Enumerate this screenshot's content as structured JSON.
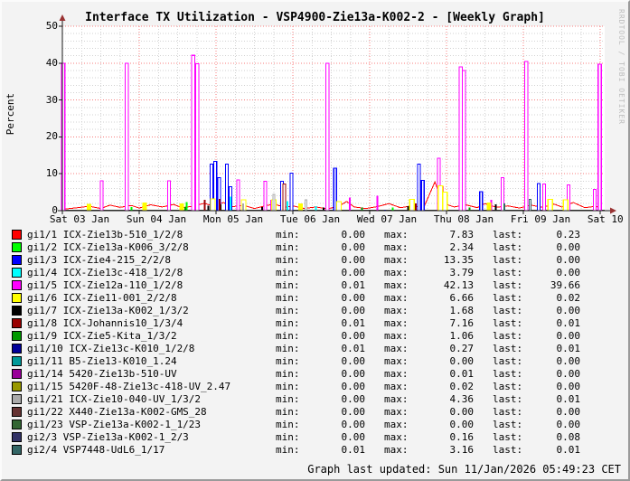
{
  "title": "Interface TX Utilization - VSP4900-Zie13a-K002-2 - [Weekly Graph]",
  "watermark": "RRDTOOL / TOBI OETIKER",
  "footer": "Graph last updated: Sun 11/Jan/2026 05:49:23 CET",
  "colors": {
    "background": "#f3f3f3",
    "canvas": "#ffffff",
    "axis": "#1a1a1a",
    "arrow": "#993333",
    "grid_major": "#f87c7c",
    "grid_minor": "#d2d2d2",
    "watermark": "#bdbdbd"
  },
  "chart_data": {
    "type": "line",
    "title": "Interface TX Utilization - VSP4900-Zie13a-K002-2 - [Weekly Graph]",
    "xlabel": "",
    "ylabel": "Percent",
    "ylim": [
      0,
      50
    ],
    "y_major_ticks": [
      0,
      10,
      20,
      30,
      40,
      50
    ],
    "y_minor_step": 2,
    "x_tick_labels": [
      "Sat 03 Jan",
      "Sun 04 Jan",
      "Mon 05 Jan",
      "Tue 06 Jan",
      "Wed 07 Jan",
      "Thu 08 Jan",
      "Fri 09 Jan",
      "Sat 10 Jan"
    ],
    "x_days_span": 7.06,
    "x_minor_per_day": 4,
    "grid": true,
    "legend_position": "bottom",
    "baseline": {
      "color": "#3a3a33",
      "value": 0.15
    },
    "series": [
      {
        "name": "gi1/1 ICX-Zie13b-510_1/2/8",
        "color": "#FF0000",
        "line": [
          [
            0,
            0.4
          ],
          [
            0.2,
            0.8
          ],
          [
            0.35,
            1.2
          ],
          [
            0.5,
            0.6
          ],
          [
            0.62,
            1.5
          ],
          [
            0.75,
            0.9
          ],
          [
            0.9,
            1.4
          ],
          [
            1.0,
            0.7
          ],
          [
            1.15,
            1.6
          ],
          [
            1.3,
            1.0
          ],
          [
            1.45,
            1.7
          ],
          [
            1.55,
            0.8
          ],
          [
            1.7,
            1.2
          ],
          [
            1.85,
            2.0
          ],
          [
            1.95,
            1.3
          ],
          [
            2.1,
            2.2
          ],
          [
            2.2,
            1.0
          ],
          [
            2.35,
            1.5
          ],
          [
            2.5,
            0.6
          ],
          [
            2.6,
            1.1
          ],
          [
            2.75,
            1.8
          ],
          [
            2.9,
            0.9
          ],
          [
            3.0,
            1.3
          ],
          [
            3.15,
            0.6
          ],
          [
            3.3,
            1.0
          ],
          [
            3.45,
            0.5
          ],
          [
            3.6,
            1.2
          ],
          [
            3.7,
            2.5
          ],
          [
            3.8,
            1.0
          ],
          [
            3.95,
            0.6
          ],
          [
            4.1,
            1.1
          ],
          [
            4.25,
            1.9
          ],
          [
            4.4,
            0.8
          ],
          [
            4.55,
            1.3
          ],
          [
            4.7,
            0.7
          ],
          [
            4.85,
            7.8
          ],
          [
            4.95,
            2.0
          ],
          [
            5.1,
            1.0
          ],
          [
            5.25,
            1.6
          ],
          [
            5.4,
            0.8
          ],
          [
            5.5,
            1.9
          ],
          [
            5.65,
            0.9
          ],
          [
            5.8,
            1.3
          ],
          [
            5.95,
            0.7
          ],
          [
            6.1,
            1.5
          ],
          [
            6.25,
            0.9
          ],
          [
            6.4,
            1.8
          ],
          [
            6.5,
            1.0
          ],
          [
            6.65,
            2.2
          ],
          [
            6.8,
            0.8
          ],
          [
            6.95,
            1.2
          ],
          [
            7.0,
            0.4
          ]
        ]
      },
      {
        "name": "gi1/2 ICX-Zie13a-K006_3/2/8",
        "color": "#00FF00",
        "spikes": [
          [
            0.9,
            1.0
          ],
          [
            1.62,
            2.3
          ],
          [
            3.55,
            1.5
          ],
          [
            4.3,
            0.8
          ]
        ]
      },
      {
        "name": "gi1/3 ICX-Zie4-215_2/2/8",
        "color": "#0000FF",
        "spikes": [
          [
            1.94,
            12.6
          ],
          [
            1.99,
            13.3
          ],
          [
            2.04,
            9.0
          ],
          [
            2.14,
            12.6
          ],
          [
            2.19,
            6.5
          ],
          [
            2.86,
            8.0
          ],
          [
            2.98,
            10.2
          ],
          [
            3.55,
            11.5
          ],
          [
            4.64,
            12.6
          ],
          [
            4.69,
            8.2
          ],
          [
            5.45,
            5.2
          ],
          [
            6.2,
            7.3
          ]
        ]
      },
      {
        "name": "gi1/4 ICX-Zie13c-418_1/2/8",
        "color": "#00FFFF",
        "spikes": [
          [
            1.55,
            1.2
          ],
          [
            2.19,
            3.8
          ],
          [
            2.93,
            2.6
          ],
          [
            3.3,
            1.2
          ]
        ]
      },
      {
        "name": "gi1/5 ICX-Zie12a-110_1/2/8",
        "color": "#FF00FF",
        "spikes": [
          [
            0.005,
            40.0
          ],
          [
            0.51,
            8.1
          ],
          [
            0.84,
            40.0
          ],
          [
            1.39,
            8.1
          ],
          [
            1.7,
            42.1
          ],
          [
            1.755,
            39.8
          ],
          [
            2.29,
            8.3
          ],
          [
            2.64,
            8.0
          ],
          [
            2.72,
            3.0
          ],
          [
            3.45,
            40.0
          ],
          [
            3.74,
            3.5
          ],
          [
            4.1,
            4.0
          ],
          [
            4.9,
            14.2
          ],
          [
            4.94,
            6.5
          ],
          [
            5.185,
            39.0
          ],
          [
            5.225,
            38.0
          ],
          [
            5.58,
            3.0
          ],
          [
            5.73,
            9.0
          ],
          [
            6.04,
            40.5
          ],
          [
            6.27,
            7.2
          ],
          [
            6.59,
            7.0
          ],
          [
            6.93,
            5.8
          ],
          [
            6.995,
            39.7
          ]
        ]
      },
      {
        "name": "gi1/6 ICX-Zie11-001_2/2/8",
        "color": "#FFFF00",
        "spike_width": 5,
        "hollow_min": 2.5,
        "spikes": [
          [
            0.35,
            1.8
          ],
          [
            1.07,
            2.2
          ],
          [
            1.55,
            2.0
          ],
          [
            1.96,
            3.2
          ],
          [
            2.36,
            3.0
          ],
          [
            2.75,
            3.0
          ],
          [
            3.1,
            2.0
          ],
          [
            3.6,
            2.5
          ],
          [
            4.55,
            3.1
          ],
          [
            4.92,
            6.7
          ],
          [
            4.98,
            5.0
          ],
          [
            5.55,
            2.2
          ],
          [
            6.35,
            3.1
          ],
          [
            6.55,
            3.0
          ]
        ]
      },
      {
        "name": "gi1/7 ICX-Zie13a-K002_1/3/2",
        "color": "#000000",
        "spikes": [
          [
            1.9,
            1.3
          ],
          [
            2.06,
            1.7
          ],
          [
            2.6,
            1.0
          ],
          [
            3.4,
            0.8
          ],
          [
            4.5,
            1.2
          ],
          [
            5.64,
            1.7
          ]
        ]
      },
      {
        "name": "gi1/8 ICX-Johannis10_1/3/4",
        "color": "#990000",
        "spikes": [
          [
            1.85,
            3.0
          ],
          [
            2.05,
            3.2
          ],
          [
            2.89,
            7.2
          ],
          [
            4.6,
            2.0
          ]
        ]
      },
      {
        "name": "gi1/9 ICX-Zie5-Kita_1/3/2",
        "color": "#009900",
        "spikes": [
          [
            1.6,
            1.0
          ],
          [
            3.9,
            0.8
          ],
          [
            5.3,
            0.9
          ]
        ]
      },
      {
        "name": "gi1/10 ICX-Zie13c-K010_1/2/8",
        "color": "#000099",
        "spikes": [
          [
            4.2,
            0.27
          ]
        ]
      },
      {
        "name": "gi1/11 B5-Zie13-K010_1.24",
        "color": "#009999",
        "spikes": []
      },
      {
        "name": "gi1/14 5420-Zie13b-510-UV",
        "color": "#990099",
        "spikes": []
      },
      {
        "name": "gi1/15 5420F-48-Zie13c-418-UV_2.47",
        "color": "#999900",
        "spikes": []
      },
      {
        "name": "gi1/21 ICX-Zie10-040-UV_1/3/2",
        "color": "#AAAAAA",
        "hollow_min": 2.5,
        "spikes": [
          [
            2.35,
            2.0
          ],
          [
            2.75,
            4.4
          ],
          [
            3.17,
            3.0
          ]
        ]
      },
      {
        "name": "gi1/22 X440-Zie13a-K002-GMS_28",
        "color": "#663333",
        "spikes": []
      },
      {
        "name": "gi1/23 VSP-Zie13a-K002-1_1/23",
        "color": "#336633",
        "spikes": []
      },
      {
        "name": "gi2/3 VSP-Zie13a-K002-1_2/3",
        "color": "#333366",
        "spikes": [
          [
            6.5,
            0.16
          ]
        ]
      },
      {
        "name": "gi2/4 VSP7448-UdL6_1/17",
        "color": "#336666",
        "hollow_min": 2.5,
        "spikes": [
          [
            5.75,
            2.0
          ],
          [
            6.09,
            3.1
          ]
        ]
      }
    ]
  },
  "legend": {
    "col_labels": {
      "min": "min:",
      "max": "max:",
      "last": "last:"
    },
    "rows": [
      {
        "color": "#FF0000",
        "label": "gi1/1 ICX-Zie13b-510_1/2/8",
        "min": "0.00",
        "max": "7.83",
        "last": "0.23"
      },
      {
        "color": "#00FF00",
        "label": "gi1/2 ICX-Zie13a-K006_3/2/8",
        "min": "0.00",
        "max": "2.34",
        "last": "0.00"
      },
      {
        "color": "#0000FF",
        "label": "gi1/3 ICX-Zie4-215_2/2/8",
        "min": "0.00",
        "max": "13.35",
        "last": "0.00"
      },
      {
        "color": "#00FFFF",
        "label": "gi1/4 ICX-Zie13c-418_1/2/8",
        "min": "0.00",
        "max": "3.79",
        "last": "0.00"
      },
      {
        "color": "#FF00FF",
        "label": "gi1/5 ICX-Zie12a-110_1/2/8",
        "min": "0.01",
        "max": "42.13",
        "last": "39.66"
      },
      {
        "color": "#FFFF00",
        "label": "gi1/6 ICX-Zie11-001_2/2/8",
        "min": "0.00",
        "max": "6.66",
        "last": "0.02"
      },
      {
        "color": "#000000",
        "label": "gi1/7 ICX-Zie13a-K002_1/3/2",
        "min": "0.00",
        "max": "1.68",
        "last": "0.00"
      },
      {
        "color": "#990000",
        "label": "gi1/8 ICX-Johannis10_1/3/4",
        "min": "0.01",
        "max": "7.16",
        "last": "0.01"
      },
      {
        "color": "#009900",
        "label": "gi1/9 ICX-Zie5-Kita_1/3/2",
        "min": "0.00",
        "max": "1.06",
        "last": "0.00"
      },
      {
        "color": "#000099",
        "label": "gi1/10 ICX-Zie13c-K010_1/2/8",
        "min": "0.01",
        "max": "0.27",
        "last": "0.01"
      },
      {
        "color": "#009999",
        "label": "gi1/11 B5-Zie13-K010_1.24",
        "min": "0.00",
        "max": "0.00",
        "last": "0.00"
      },
      {
        "color": "#990099",
        "label": "gi1/14 5420-Zie13b-510-UV",
        "min": "0.00",
        "max": "0.01",
        "last": "0.00"
      },
      {
        "color": "#999900",
        "label": "gi1/15 5420F-48-Zie13c-418-UV_2.47",
        "min": "0.00",
        "max": "0.02",
        "last": "0.00"
      },
      {
        "color": "#AAAAAA",
        "label": "gi1/21 ICX-Zie10-040-UV_1/3/2",
        "min": "0.00",
        "max": "4.36",
        "last": "0.01"
      },
      {
        "color": "#663333",
        "label": "gi1/22 X440-Zie13a-K002-GMS_28",
        "min": "0.00",
        "max": "0.00",
        "last": "0.00"
      },
      {
        "color": "#336633",
        "label": "gi1/23 VSP-Zie13a-K002-1_1/23",
        "min": "0.00",
        "max": "0.00",
        "last": "0.00"
      },
      {
        "color": "#333366",
        "label": "gi2/3 VSP-Zie13a-K002-1_2/3",
        "min": "0.00",
        "max": "0.16",
        "last": "0.08"
      },
      {
        "color": "#336666",
        "label": "gi2/4 VSP7448-UdL6_1/17",
        "min": "0.01",
        "max": "3.16",
        "last": "0.01"
      }
    ]
  }
}
